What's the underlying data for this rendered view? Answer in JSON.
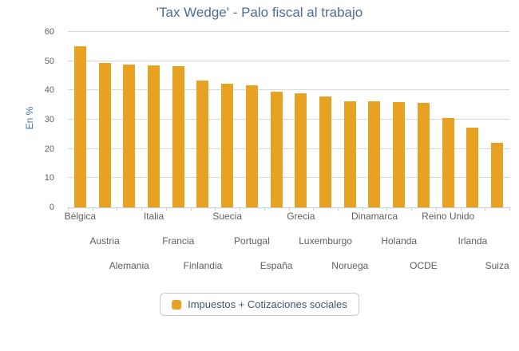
{
  "title": "'Tax Wedge' - Palo fiscal al trabajo",
  "chart_data": {
    "type": "bar",
    "title": "'Tax Wedge' - Palo fiscal al trabajo",
    "xlabel": "",
    "ylabel": "En %",
    "ylim": [
      0,
      60
    ],
    "ytick_step": 10,
    "yticks": [
      0,
      10,
      20,
      30,
      40,
      50,
      60
    ],
    "grid": true,
    "legend_position": "bottom",
    "categories": [
      "Bélgica",
      "Austria",
      "Alemania",
      "Italia",
      "Francia",
      "Finlandia",
      "Suecia",
      "Portugal",
      "España",
      "Grecia",
      "Luxemburgo",
      "Noruega",
      "Dinamarca",
      "Holanda",
      "OCDE",
      "Reino Unido",
      "Irlanda",
      "Suiza"
    ],
    "series": [
      {
        "name": "Impuestos + Cotizaciones sociales",
        "color": "#e7a224",
        "values": [
          55.0,
          49.3,
          48.9,
          48.6,
          48.2,
          43.4,
          42.4,
          41.7,
          39.5,
          39.0,
          38.0,
          36.3,
          36.2,
          36.1,
          35.6,
          30.6,
          27.3,
          22.1
        ]
      }
    ]
  },
  "colors": {
    "bar": "#e7a224",
    "title_text": "#4e6d92",
    "axis_line": "#c0d0e0",
    "gridline": "#d8d8d8",
    "tick_label": "#606060",
    "y_axis_title": "#4572a7",
    "legend_text": "#3e576f",
    "legend_border": "#c9c9c9",
    "background": "#ffffff"
  }
}
